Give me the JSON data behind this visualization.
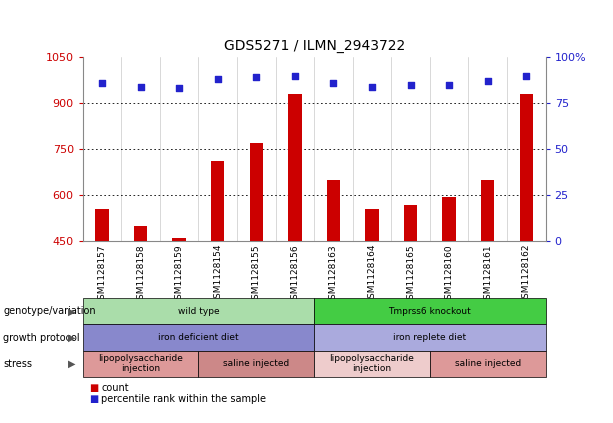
{
  "title": "GDS5271 / ILMN_2943722",
  "samples": [
    "GSM1128157",
    "GSM1128158",
    "GSM1128159",
    "GSM1128154",
    "GSM1128155",
    "GSM1128156",
    "GSM1128163",
    "GSM1128164",
    "GSM1128165",
    "GSM1128160",
    "GSM1128161",
    "GSM1128162"
  ],
  "counts": [
    555,
    500,
    460,
    710,
    770,
    930,
    650,
    555,
    568,
    595,
    650,
    930
  ],
  "percentiles": [
    86,
    84,
    83,
    88,
    89,
    90,
    86,
    84,
    85,
    85,
    87,
    90
  ],
  "ylim_left": [
    450,
    1050
  ],
  "ylim_right": [
    0,
    100
  ],
  "yticks_left": [
    450,
    600,
    750,
    900,
    1050
  ],
  "yticks_right": [
    0,
    25,
    50,
    75,
    100
  ],
  "bar_color": "#cc0000",
  "dot_color": "#2222cc",
  "grid_color": "#000000",
  "grid_yticks": [
    600,
    750,
    900
  ],
  "bar_width": 0.35,
  "annotation_rows": [
    {
      "label": "genotype/variation",
      "cells": [
        {
          "text": "wild type",
          "span": 6,
          "color": "#aaddaa",
          "edge_color": "#008000"
        },
        {
          "text": "Tmprss6 knockout",
          "span": 6,
          "color": "#44cc44",
          "edge_color": "#008000"
        }
      ]
    },
    {
      "label": "growth protocol",
      "cells": [
        {
          "text": "iron deficient diet",
          "span": 6,
          "color": "#8888cc",
          "edge_color": "#444488"
        },
        {
          "text": "iron replete diet",
          "span": 6,
          "color": "#aaaadd",
          "edge_color": "#444488"
        }
      ]
    },
    {
      "label": "stress",
      "cells": [
        {
          "text": "lipopolysaccharide\ninjection",
          "span": 3,
          "color": "#dd9999",
          "edge_color": "#aa6666"
        },
        {
          "text": "saline injected",
          "span": 3,
          "color": "#cc8888",
          "edge_color": "#aa6666"
        },
        {
          "text": "lipopolysaccharide\ninjection",
          "span": 3,
          "color": "#eecccc",
          "edge_color": "#aa6666"
        },
        {
          "text": "saline injected",
          "span": 3,
          "color": "#dd9999",
          "edge_color": "#aa6666"
        }
      ]
    }
  ],
  "background_color": "#ffffff",
  "plot_bg_color": "#ffffff"
}
